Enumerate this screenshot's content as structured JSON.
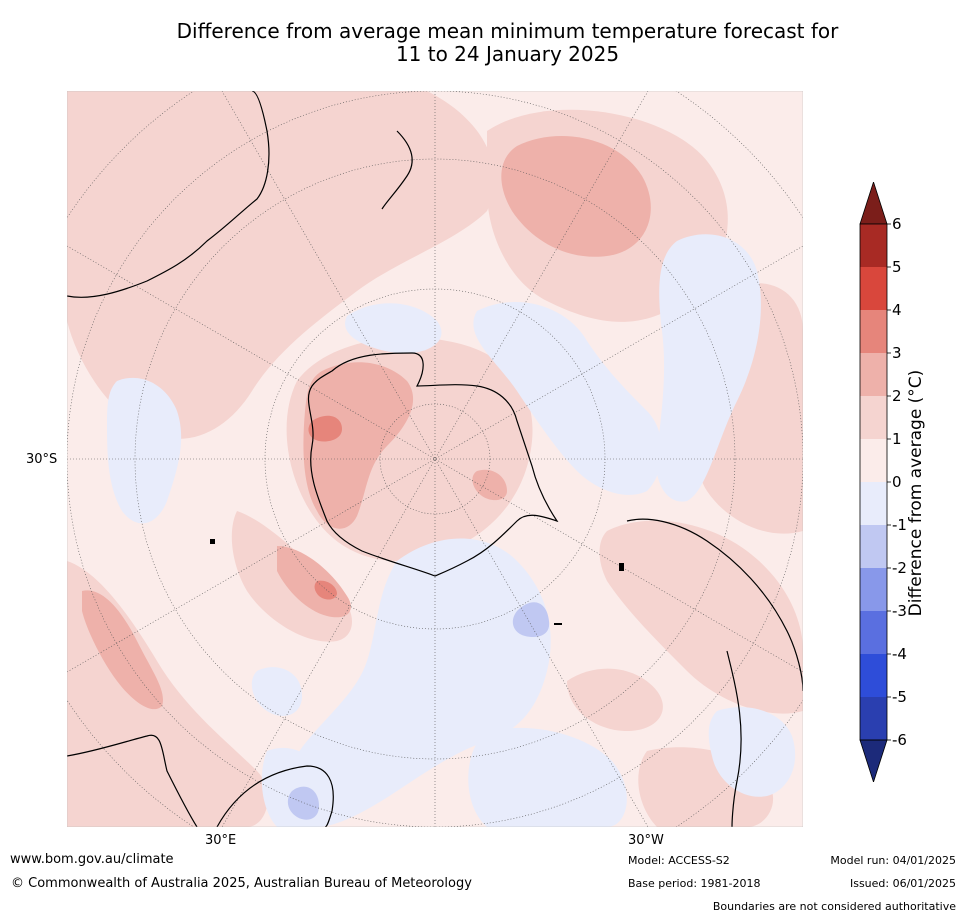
{
  "title_line1": "Difference from average mean minimum temperature forecast for",
  "title_line2": "11 to 24 January 2025",
  "axis_labels": {
    "left_lat": "30°S",
    "bottom_left_lon": "30°E",
    "bottom_right_lon": "30°W"
  },
  "colorbar": {
    "label": "Difference from average (°C)",
    "ticks": [
      "6",
      "5",
      "4",
      "3",
      "2",
      "1",
      "0",
      "-1",
      "-2",
      "-3",
      "-4",
      "-5",
      "-6"
    ],
    "colors": [
      "#7b1e1a",
      "#a82a24",
      "#d9473c",
      "#e6857b",
      "#eeb1aa",
      "#f5d4d0",
      "#fbecea",
      "#e8ecfb",
      "#c0c8f2",
      "#8898ea",
      "#5a6fe0",
      "#2e4dd9",
      "#2a3fb0",
      "#1c2a7a"
    ]
  },
  "footer": {
    "website": "www.bom.gov.au/climate",
    "copyright": "© Commonwealth of Australia 2025, Australian Bureau of Meteorology",
    "model": "Model: ACCESS-S2",
    "base_period": "Base period: 1981-2018",
    "model_run": "Model run: 04/01/2025",
    "issued": "Issued: 06/01/2025",
    "disclaimer": "Boundaries are not considered authoritative"
  }
}
